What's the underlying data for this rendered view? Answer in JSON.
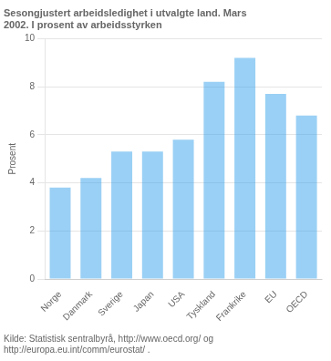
{
  "chart_data": {
    "type": "bar",
    "title": "Sesongjustert arbeidsledighet i utvalgte land. Mars\n2002. I prosent av arbeidsstyrken",
    "ylabel": "Prosent",
    "source": "Kilde: Statistisk sentralbyrå, http://www.oecd.org/ og\nhttp://europa.eu.int/comm/eurostat/ .",
    "categories": [
      "Norge",
      "Danmark",
      "Sverige",
      "Japan",
      "USA",
      "Tyskland",
      "Frankrike",
      "EU",
      "OECD"
    ],
    "values": [
      3.8,
      4.2,
      5.3,
      5.3,
      5.8,
      8.2,
      9.2,
      7.7,
      6.8
    ],
    "ylim": [
      0,
      10
    ],
    "yticks": [
      0,
      2,
      4,
      6,
      8,
      10
    ],
    "grid": true
  }
}
